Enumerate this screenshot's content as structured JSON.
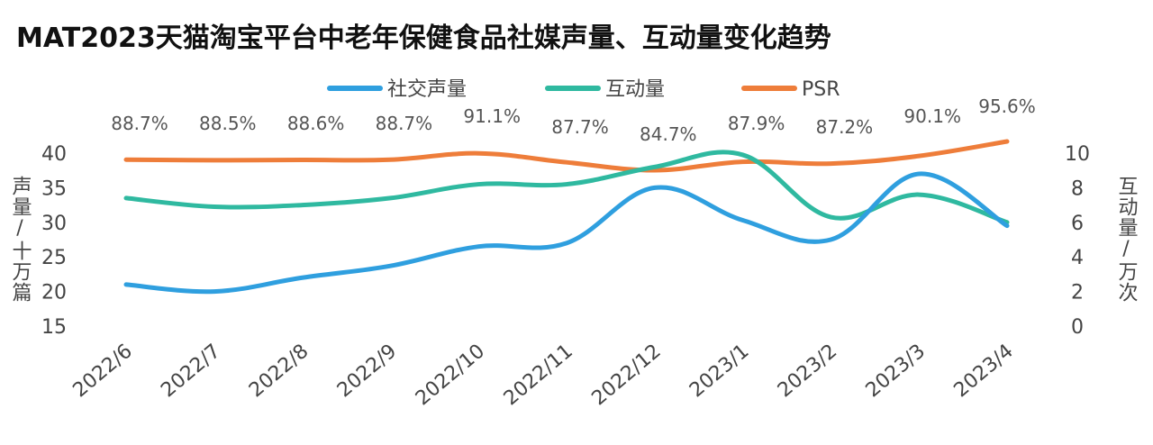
{
  "chart_data": {
    "type": "line",
    "title": "MAT2023天猫淘宝平台中老年保健食品社媒声量、互动量变化趋势",
    "categories": [
      "2022/6",
      "2022/7",
      "2022/8",
      "2022/9",
      "2022/10",
      "2022/11",
      "2022/12",
      "2023/1",
      "2023/2",
      "2023/3",
      "2023/4"
    ],
    "series": [
      {
        "name": "社交声量",
        "axis": "left",
        "color": "#2f9fdf",
        "values": [
          21,
          20,
          22,
          23.7,
          26.5,
          27,
          35,
          30.3,
          27.5,
          37,
          29.5
        ]
      },
      {
        "name": "互动量",
        "axis": "right",
        "color": "#2fb9a0",
        "values": [
          7.4,
          6.9,
          7.0,
          7.4,
          8.2,
          8.2,
          9.2,
          9.9,
          6.3,
          7.6,
          6.0
        ]
      },
      {
        "name": "PSR",
        "axis": "psr",
        "color": "#ee7d3a",
        "values": [
          88.7,
          88.5,
          88.6,
          88.7,
          91.1,
          87.7,
          84.7,
          87.9,
          87.2,
          90.1,
          95.6
        ],
        "labels": [
          "88.7%",
          "88.5%",
          "88.6%",
          "88.7%",
          "91.1%",
          "87.7%",
          "84.7%",
          "87.9%",
          "87.2%",
          "90.1%",
          "95.6%"
        ]
      }
    ],
    "y_left": {
      "label": "声量/十万篇",
      "ticks": [
        40,
        35,
        30,
        25,
        20,
        15
      ],
      "lim": [
        15,
        40
      ]
    },
    "y_right": {
      "label": "互动量/万次",
      "ticks": [
        10,
        8,
        6,
        4,
        2,
        0
      ],
      "lim": [
        0,
        10
      ]
    },
    "legend": {
      "placement": "top"
    }
  }
}
